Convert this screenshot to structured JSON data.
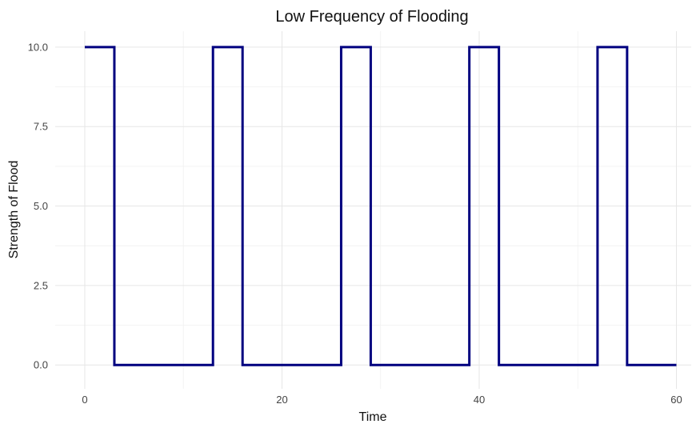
{
  "chart_data": {
    "type": "line",
    "title": "Low Frequency of Flooding",
    "xlabel": "Time",
    "ylabel": "Strength of Flood",
    "xlim": [
      -3,
      61.5
    ],
    "ylim": [
      -0.75,
      10.5
    ],
    "x_ticks": [
      0,
      20,
      40,
      60
    ],
    "y_ticks": [
      0.0,
      2.5,
      5.0,
      7.5,
      10.0
    ],
    "x_tick_labels": [
      "0",
      "20",
      "40",
      "60"
    ],
    "y_tick_labels": [
      "0.0",
      "2.5",
      "5.0",
      "7.5",
      "10.0"
    ],
    "grid": true,
    "line_color": "#00007F",
    "series": [
      {
        "x": [
          0,
          3,
          3,
          13,
          13,
          16,
          16,
          26,
          26,
          29,
          29,
          39,
          39,
          42,
          42,
          52,
          52,
          55,
          55,
          60
        ],
        "y": [
          10,
          10,
          0,
          0,
          10,
          10,
          0,
          0,
          10,
          10,
          0,
          0,
          10,
          10,
          0,
          0,
          10,
          10,
          0,
          0
        ]
      }
    ]
  }
}
